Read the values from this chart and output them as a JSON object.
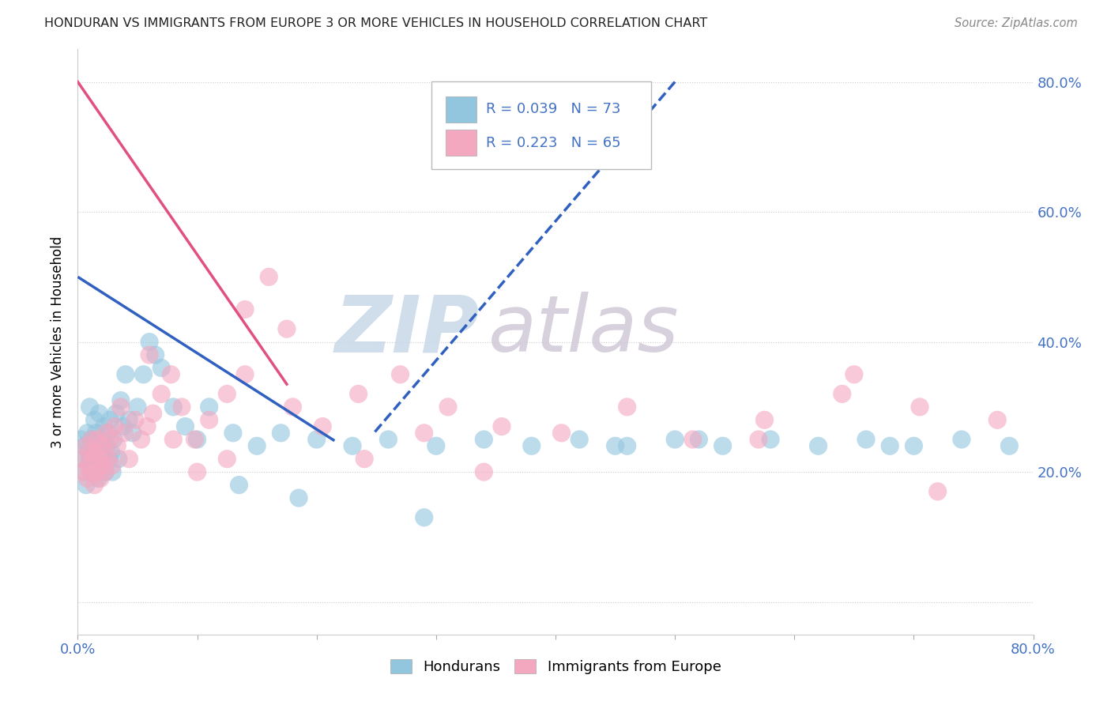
{
  "title": "HONDURAN VS IMMIGRANTS FROM EUROPE 3 OR MORE VEHICLES IN HOUSEHOLD CORRELATION CHART",
  "source": "Source: ZipAtlas.com",
  "ylabel": "3 or more Vehicles in Household",
  "xlim": [
    0.0,
    0.8
  ],
  "ylim": [
    -0.05,
    0.85
  ],
  "yticks": [
    0.0,
    0.2,
    0.4,
    0.6,
    0.8
  ],
  "xticks": [
    0.0,
    0.1,
    0.2,
    0.3,
    0.4,
    0.5,
    0.6,
    0.7,
    0.8
  ],
  "xtick_labels": [
    "0.0%",
    "",
    "",
    "",
    "",
    "",
    "",
    "",
    "80.0%"
  ],
  "ytick_right_labels": [
    "",
    "20.0%",
    "40.0%",
    "60.0%",
    "80.0%"
  ],
  "legend_r1": "R = 0.039",
  "legend_n1": "N = 73",
  "legend_r2": "R = 0.223",
  "legend_n2": "N = 65",
  "color_honduran": "#92C5DE",
  "color_europe": "#F4A8C0",
  "trendline_honduran_solid": [
    0.0,
    0.5,
    0.215,
    0.248
  ],
  "trendline_honduran_dash": [
    0.5,
    0.8,
    0.248,
    0.26
  ],
  "trendline_europe": [
    0.0,
    0.8,
    0.175,
    0.335
  ],
  "honduran_x": [
    0.003,
    0.004,
    0.005,
    0.006,
    0.007,
    0.008,
    0.009,
    0.01,
    0.01,
    0.011,
    0.012,
    0.013,
    0.013,
    0.014,
    0.015,
    0.015,
    0.016,
    0.017,
    0.018,
    0.018,
    0.019,
    0.02,
    0.021,
    0.022,
    0.023,
    0.024,
    0.025,
    0.026,
    0.027,
    0.028,
    0.029,
    0.03,
    0.032,
    0.034,
    0.036,
    0.038,
    0.04,
    0.043,
    0.046,
    0.05,
    0.055,
    0.06,
    0.065,
    0.07,
    0.08,
    0.09,
    0.1,
    0.11,
    0.13,
    0.15,
    0.17,
    0.2,
    0.23,
    0.26,
    0.3,
    0.34,
    0.38,
    0.42,
    0.46,
    0.5,
    0.54,
    0.58,
    0.62,
    0.66,
    0.7,
    0.74,
    0.78,
    0.135,
    0.185,
    0.29,
    0.45,
    0.52,
    0.68
  ],
  "honduran_y": [
    0.25,
    0.22,
    0.2,
    0.24,
    0.18,
    0.26,
    0.23,
    0.22,
    0.3,
    0.21,
    0.25,
    0.23,
    0.2,
    0.28,
    0.22,
    0.26,
    0.24,
    0.19,
    0.23,
    0.29,
    0.21,
    0.25,
    0.23,
    0.27,
    0.2,
    0.24,
    0.26,
    0.22,
    0.28,
    0.23,
    0.2,
    0.25,
    0.29,
    0.22,
    0.31,
    0.27,
    0.35,
    0.28,
    0.26,
    0.3,
    0.35,
    0.4,
    0.38,
    0.36,
    0.3,
    0.27,
    0.25,
    0.3,
    0.26,
    0.24,
    0.26,
    0.25,
    0.24,
    0.25,
    0.24,
    0.25,
    0.24,
    0.25,
    0.24,
    0.25,
    0.24,
    0.25,
    0.24,
    0.25,
    0.24,
    0.25,
    0.24,
    0.18,
    0.16,
    0.13,
    0.24,
    0.25,
    0.24
  ],
  "europe_x": [
    0.003,
    0.005,
    0.007,
    0.008,
    0.009,
    0.01,
    0.011,
    0.012,
    0.013,
    0.014,
    0.015,
    0.016,
    0.017,
    0.018,
    0.019,
    0.02,
    0.021,
    0.022,
    0.023,
    0.024,
    0.025,
    0.027,
    0.029,
    0.031,
    0.033,
    0.036,
    0.039,
    0.043,
    0.048,
    0.053,
    0.058,
    0.063,
    0.07,
    0.078,
    0.087,
    0.098,
    0.11,
    0.125,
    0.14,
    0.16,
    0.18,
    0.205,
    0.235,
    0.27,
    0.31,
    0.355,
    0.405,
    0.46,
    0.515,
    0.575,
    0.64,
    0.705,
    0.77,
    0.24,
    0.29,
    0.34,
    0.57,
    0.65,
    0.72,
    0.14,
    0.175,
    0.06,
    0.08,
    0.1,
    0.125
  ],
  "europe_y": [
    0.22,
    0.2,
    0.24,
    0.19,
    0.21,
    0.23,
    0.2,
    0.25,
    0.22,
    0.18,
    0.23,
    0.2,
    0.25,
    0.22,
    0.19,
    0.24,
    0.21,
    0.23,
    0.2,
    0.26,
    0.22,
    0.25,
    0.21,
    0.27,
    0.24,
    0.3,
    0.26,
    0.22,
    0.28,
    0.25,
    0.27,
    0.29,
    0.32,
    0.35,
    0.3,
    0.25,
    0.28,
    0.32,
    0.35,
    0.5,
    0.3,
    0.27,
    0.32,
    0.35,
    0.3,
    0.27,
    0.26,
    0.3,
    0.25,
    0.28,
    0.32,
    0.3,
    0.28,
    0.22,
    0.26,
    0.2,
    0.25,
    0.35,
    0.17,
    0.45,
    0.42,
    0.38,
    0.25,
    0.2,
    0.22
  ],
  "watermark_zip_color": "#c8d8e8",
  "watermark_atlas_color": "#d0c8d8"
}
